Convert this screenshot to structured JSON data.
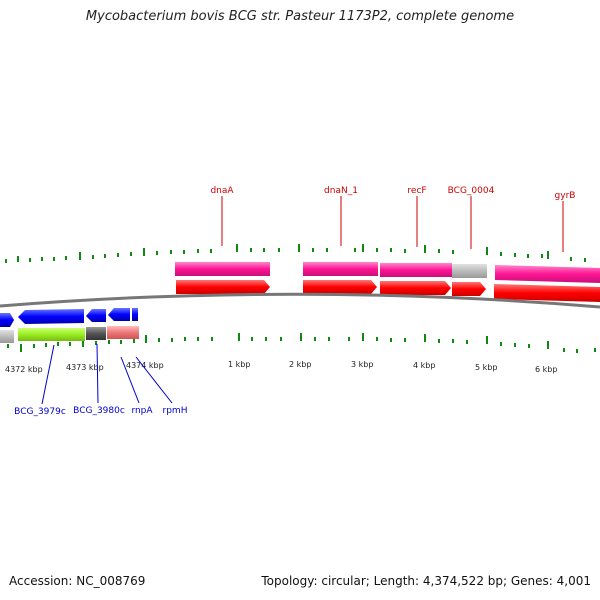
{
  "title": "Mycobacterium bovis BCG str. Pasteur 1173P2, complete genome",
  "accession": "Accession: NC_008769",
  "topology": "Topology: circular; Length: 4,374,522 bp; Genes: 4,001",
  "colors": {
    "forward_gene": "#ff0000",
    "reverse_gene": "#0000ff",
    "forward_label": "#cc0000",
    "reverse_label": "#0000cc",
    "cds_magenta": "#ff1493",
    "cds_grey": "#bbbbbb",
    "cds_lime": "#99ee22",
    "cds_dark": "#555555",
    "cds_pink": "#ee7777",
    "backbone": "#777777",
    "ticks": "#118811"
  },
  "scale_labels": [
    "4372 kbp",
    "4373 kbp",
    "4374 kbp",
    "1 kbp",
    "2 kbp",
    "3 kbp",
    "4 kbp",
    "5 kbp",
    "6 kbp"
  ],
  "forward_genes": [
    "dnaA",
    "dnaN_1",
    "recF",
    "BCG_0004",
    "gyrB"
  ],
  "reverse_genes": [
    "BCG_3979c",
    "BCG_3980c",
    "rnpA",
    "rpmH"
  ]
}
